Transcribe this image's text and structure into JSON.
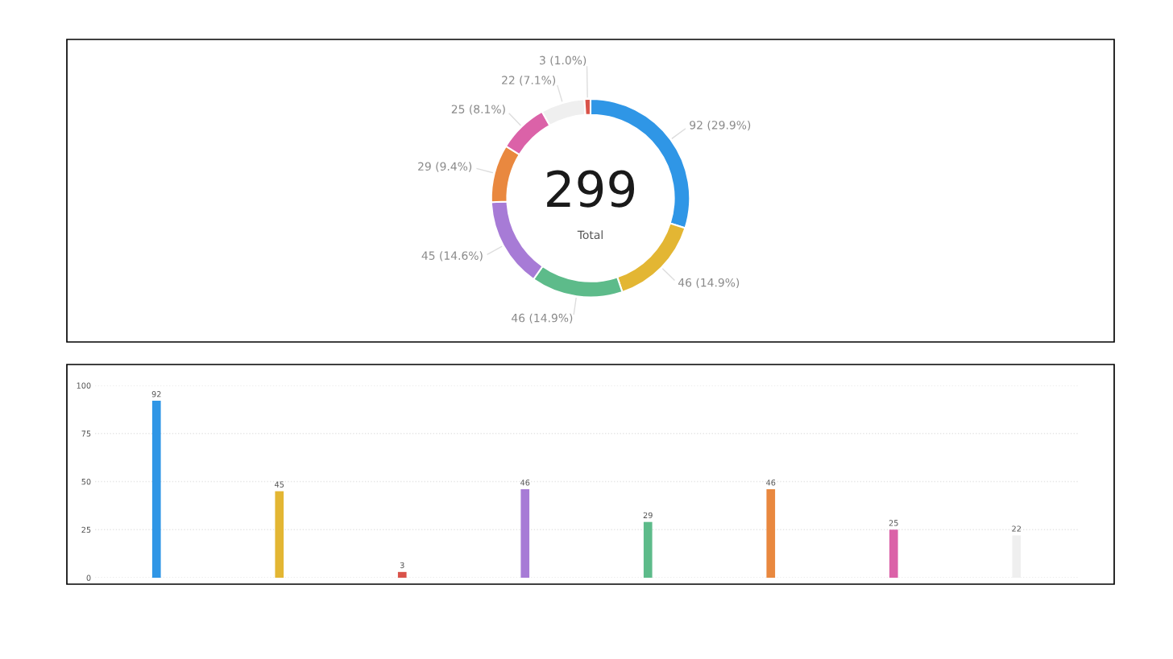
{
  "chart_data": [
    {
      "type": "donut",
      "categories": [
        null,
        null,
        null,
        null,
        null,
        null,
        null,
        null
      ],
      "values": [
        92,
        46,
        46,
        45,
        29,
        25,
        22,
        3
      ],
      "colors": [
        "#2f96e6",
        "#e3b633",
        "#5dbb8a",
        "#a77bd6",
        "#e9883f",
        "#db62a8",
        "#efefef",
        "#d9534a"
      ],
      "value_labels": [
        "92 (29.9%)",
        "46 (14.9%)",
        "46 (14.9%)",
        "45 (14.6%)",
        "29 (9.4%)",
        "25 (8.1%)",
        "22 (7.1%)",
        "3 (1.0%)"
      ],
      "annotations": [
        "299",
        "Total"
      ]
    },
    {
      "type": "bar",
      "categories": [
        null,
        null,
        null,
        null,
        null,
        null,
        null,
        null
      ],
      "values": [
        92,
        45,
        3,
        46,
        29,
        46,
        25,
        22
      ],
      "colors": [
        "#2f96e6",
        "#e3b633",
        "#d9534a",
        "#a77bd6",
        "#5dbb8a",
        "#e9883f",
        "#db62a8",
        "#efefef"
      ],
      "ylim": [
        0,
        100
      ],
      "yticks": [
        0,
        25,
        50,
        75,
        100
      ],
      "grid": "y",
      "data_labels": true,
      "tick_labels": "y"
    }
  ]
}
